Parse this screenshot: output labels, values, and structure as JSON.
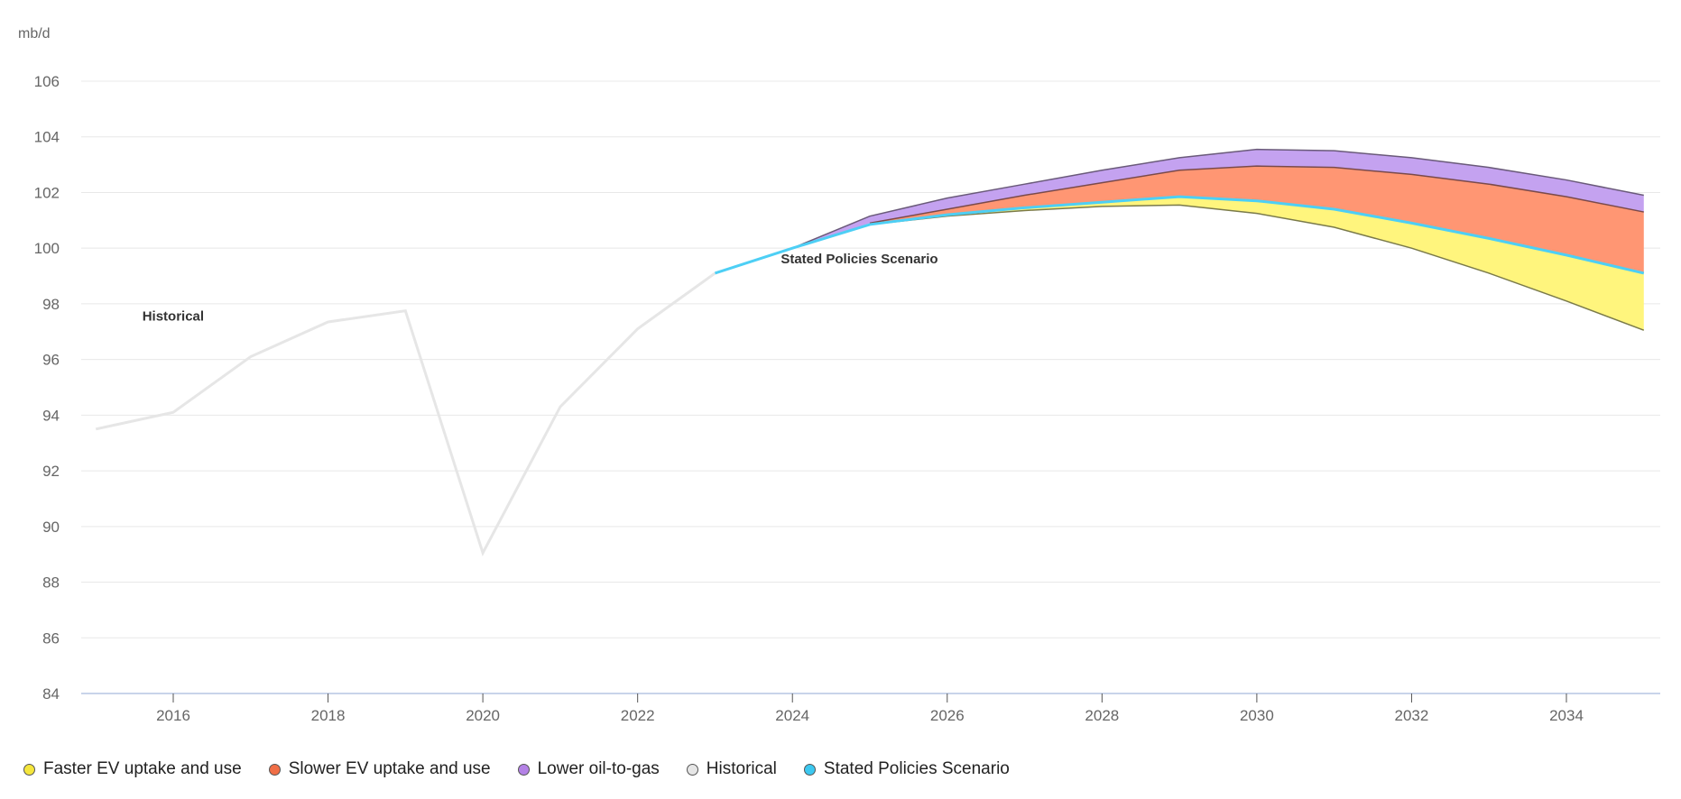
{
  "chart_data": {
    "type": "area",
    "unit_label": "mb/d",
    "ylim": [
      84,
      106
    ],
    "yticks": [
      84,
      86,
      88,
      90,
      92,
      94,
      96,
      98,
      100,
      102,
      104,
      106
    ],
    "xlim": [
      2015,
      2035
    ],
    "xticks": [
      2016,
      2018,
      2020,
      2022,
      2024,
      2026,
      2028,
      2030,
      2032,
      2034
    ],
    "grid": true,
    "legend_position": "bottom-left",
    "historical": {
      "name": "Historical",
      "x": [
        2015,
        2016,
        2017,
        2018,
        2019,
        2020,
        2021,
        2022,
        2023
      ],
      "y": [
        93.5,
        94.1,
        96.1,
        97.35,
        97.75,
        89.05,
        94.3,
        97.1,
        99.1
      ],
      "color": "#e6e6e6"
    },
    "steps": {
      "name": "Stated Policies Scenario",
      "x": [
        2023,
        2024,
        2025,
        2026,
        2027,
        2028,
        2029,
        2030,
        2031,
        2032,
        2033,
        2034,
        2035
      ],
      "y": [
        99.1,
        100.0,
        100.85,
        101.2,
        101.45,
        101.65,
        101.85,
        101.7,
        101.4,
        100.9,
        100.35,
        99.75,
        99.1
      ],
      "color": "#4dcff5"
    },
    "series": [
      {
        "name": "Faster EV uptake and use",
        "x": [
          2025,
          2026,
          2027,
          2028,
          2029,
          2030,
          2031,
          2032,
          2033,
          2034,
          2035
        ],
        "y": [
          100.85,
          101.15,
          101.35,
          101.5,
          101.55,
          101.25,
          100.75,
          100.0,
          99.1,
          98.1,
          97.05
        ],
        "fill": "#fff57d",
        "legend_color": "#f5e63c"
      },
      {
        "name": "Slower EV uptake and use",
        "x": [
          2025,
          2026,
          2027,
          2028,
          2029,
          2030,
          2031,
          2032,
          2033,
          2034,
          2035
        ],
        "y": [
          100.9,
          101.4,
          101.9,
          102.35,
          102.8,
          102.95,
          102.9,
          102.65,
          102.3,
          101.85,
          101.3
        ],
        "fill": "#ff9673",
        "legend_color": "#f06e46"
      },
      {
        "name": "Lower oil-to-gas",
        "x": [
          2024,
          2025,
          2026,
          2027,
          2028,
          2029,
          2030,
          2031,
          2032,
          2033,
          2034,
          2035
        ],
        "y": [
          100.0,
          101.15,
          101.8,
          102.3,
          102.8,
          103.25,
          103.55,
          103.5,
          103.25,
          102.9,
          102.45,
          101.9
        ],
        "fill": "#c4a2f0",
        "legend_color": "#b482e6"
      }
    ],
    "annotations": [
      {
        "text": "Historical",
        "x": 2015.6,
        "y": 97.4
      },
      {
        "text": "Stated Policies Scenario",
        "x": 2023.85,
        "y": 99.45
      }
    ],
    "legend": [
      {
        "label": "Faster EV uptake and use",
        "color": "#f5e63c"
      },
      {
        "label": "Slower EV uptake and use",
        "color": "#f06e46"
      },
      {
        "label": "Lower oil-to-gas",
        "color": "#b482e6"
      },
      {
        "label": "Historical",
        "color": "#e6e6e6"
      },
      {
        "label": "Stated Policies Scenario",
        "color": "#3cc8f0"
      }
    ]
  }
}
